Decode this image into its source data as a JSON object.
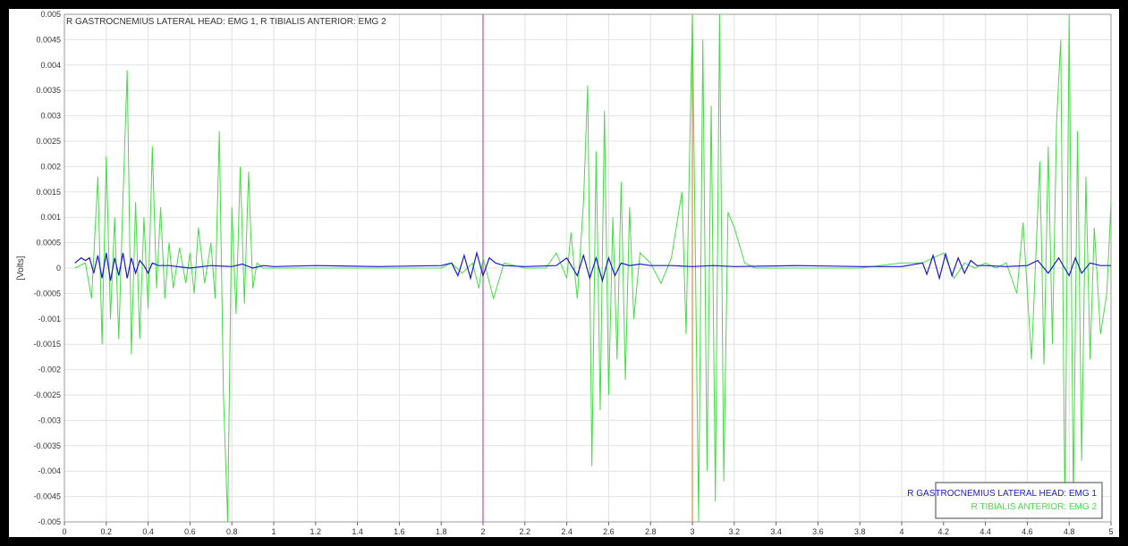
{
  "chart_data": {
    "type": "line",
    "title": "R GASTROCNEMIUS LATERAL HEAD: EMG 1, R TIBIALIS ANTERIOR: EMG 2",
    "xlabel": "",
    "ylabel": "[Volts]",
    "xlim": [
      0,
      5
    ],
    "ylim": [
      -0.005,
      0.005
    ],
    "x_ticks": [
      "0",
      "0.2",
      "0.4",
      "0.6",
      "0.8",
      "1",
      "1.2",
      "1.4",
      "1.6",
      "1.8",
      "2",
      "2.2",
      "2.4",
      "2.6",
      "2.8",
      "3",
      "3.2",
      "3.4",
      "3.6",
      "3.8",
      "4",
      "4.2",
      "4.4",
      "4.6",
      "4.8",
      "5"
    ],
    "y_ticks": [
      "0.005",
      "0.0045",
      "0.004",
      "0.0035",
      "0.003",
      "0.0025",
      "0.002",
      "0.0015",
      "0.001",
      "0.0005",
      "0",
      "-0.0005",
      "-0.001",
      "-0.0015",
      "-0.002",
      "-0.0025",
      "-0.003",
      "-0.0035",
      "-0.004",
      "-0.0045",
      "-0.005"
    ],
    "grid": true,
    "legend_position": "bottom-right",
    "markers": [
      {
        "x": 2.0,
        "color": "#cc44cc"
      },
      {
        "x": 3.0,
        "color": "#e08a3c"
      }
    ],
    "series": [
      {
        "name": "R GASTROCNEMIUS LATERAL HEAD: EMG 1",
        "color": "#1a1acc",
        "x": [
          0.05,
          0.08,
          0.1,
          0.12,
          0.14,
          0.16,
          0.18,
          0.2,
          0.22,
          0.24,
          0.26,
          0.28,
          0.3,
          0.32,
          0.34,
          0.36,
          0.38,
          0.4,
          0.42,
          0.45,
          0.5,
          0.6,
          0.7,
          0.8,
          0.85,
          0.9,
          0.95,
          1.0,
          1.2,
          1.5,
          1.8,
          1.85,
          1.88,
          1.91,
          1.94,
          1.97,
          2.0,
          2.03,
          2.06,
          2.1,
          2.2,
          2.35,
          2.4,
          2.45,
          2.48,
          2.51,
          2.54,
          2.57,
          2.6,
          2.63,
          2.66,
          2.7,
          2.75,
          2.8,
          2.9,
          3.0,
          3.1,
          3.2,
          3.5,
          3.8,
          4.0,
          4.1,
          4.12,
          4.15,
          4.18,
          4.21,
          4.24,
          4.27,
          4.3,
          4.33,
          4.36,
          4.4,
          4.5,
          4.6,
          4.65,
          4.7,
          4.75,
          4.8,
          4.83,
          4.86,
          4.9,
          4.95,
          5.0
        ],
        "y": [
          0.0001,
          0.0002,
          0.00015,
          0.0002,
          -0.0001,
          0.00025,
          -0.0002,
          0.0003,
          -0.00025,
          0.0002,
          -0.00015,
          0.0003,
          -0.0002,
          0.0002,
          -0.0001,
          0.00015,
          5e-05,
          -0.0001,
          0.0001,
          5e-05,
          5e-05,
          0.0,
          5e-05,
          3e-05,
          8e-05,
          0.0,
          5e-05,
          3e-05,
          5e-05,
          3e-05,
          5e-05,
          0.0001,
          -0.00015,
          0.00025,
          -0.0002,
          0.0003,
          -0.00015,
          0.0002,
          0.0001,
          5e-05,
          3e-05,
          5e-05,
          0.0002,
          -0.00015,
          0.00025,
          -0.0002,
          0.0002,
          -0.00025,
          0.0002,
          -0.00015,
          0.0001,
          5e-05,
          8e-05,
          5e-05,
          5e-05,
          3e-05,
          5e-05,
          3e-05,
          5e-05,
          3e-05,
          3e-05,
          0.0001,
          -0.00012,
          0.00025,
          -0.0002,
          0.00028,
          -0.00015,
          0.0002,
          -0.0001,
          0.00015,
          5e-05,
          5e-05,
          3e-05,
          5e-05,
          0.00015,
          -0.0001,
          0.0002,
          -0.00015,
          0.0002,
          -0.0001,
          0.0001,
          5e-05,
          5e-05
        ]
      },
      {
        "name": "R TIBIALIS ANTERIOR: EMG 2",
        "color": "#44dd44",
        "x": [
          0.05,
          0.1,
          0.13,
          0.16,
          0.18,
          0.2,
          0.22,
          0.24,
          0.26,
          0.28,
          0.3,
          0.32,
          0.34,
          0.36,
          0.38,
          0.4,
          0.42,
          0.44,
          0.46,
          0.48,
          0.5,
          0.52,
          0.55,
          0.58,
          0.6,
          0.62,
          0.64,
          0.67,
          0.7,
          0.72,
          0.74,
          0.76,
          0.78,
          0.8,
          0.82,
          0.84,
          0.86,
          0.88,
          0.9,
          0.92,
          0.95,
          1.0,
          1.2,
          1.5,
          1.8,
          1.85,
          1.9,
          1.95,
          1.98,
          2.0,
          2.05,
          2.1,
          2.2,
          2.3,
          2.35,
          2.4,
          2.42,
          2.45,
          2.48,
          2.5,
          2.52,
          2.54,
          2.56,
          2.58,
          2.6,
          2.62,
          2.64,
          2.66,
          2.68,
          2.7,
          2.72,
          2.75,
          2.8,
          2.85,
          2.9,
          2.95,
          2.97,
          3.0,
          3.03,
          3.05,
          3.07,
          3.09,
          3.11,
          3.13,
          3.15,
          3.17,
          3.2,
          3.25,
          3.3,
          3.5,
          3.8,
          4.0,
          4.1,
          4.2,
          4.25,
          4.3,
          4.35,
          4.4,
          4.45,
          4.5,
          4.55,
          4.58,
          4.62,
          4.66,
          4.68,
          4.7,
          4.72,
          4.74,
          4.76,
          4.78,
          4.8,
          4.82,
          4.84,
          4.86,
          4.88,
          4.9,
          4.92,
          4.95,
          4.98,
          5.0
        ],
        "y": [
          0.0,
          0.0001,
          -0.0006,
          0.0018,
          -0.0015,
          0.0022,
          -0.001,
          0.001,
          -0.0014,
          0.0014,
          0.0039,
          -0.0017,
          0.0013,
          -0.0014,
          0.001,
          -0.0008,
          0.0024,
          -0.0004,
          0.0012,
          -0.0006,
          0.0005,
          -0.0004,
          0.0004,
          -0.0003,
          0.0003,
          -0.0005,
          0.0008,
          -0.0003,
          0.0005,
          -0.0006,
          0.0027,
          -0.0025,
          -0.005,
          0.0012,
          -0.0009,
          0.002,
          -0.0007,
          0.0019,
          -0.0004,
          0.0001,
          0.0,
          0.0,
          0.0,
          0.0,
          0.0,
          0.0001,
          -0.0001,
          0.0001,
          -0.0004,
          0.0002,
          -0.0006,
          0.0001,
          0.0,
          0.0,
          0.0003,
          -0.0002,
          0.0007,
          -0.0006,
          0.0013,
          0.0036,
          -0.0039,
          0.0023,
          -0.0028,
          0.0031,
          -0.0025,
          0.001,
          -0.0018,
          0.0017,
          -0.0022,
          0.0012,
          -0.001,
          0.0003,
          0.0001,
          -0.0003,
          0.0002,
          0.0015,
          -0.0013,
          0.005,
          -0.005,
          0.0045,
          -0.004,
          0.0032,
          -0.0046,
          0.005,
          -0.0042,
          0.0011,
          0.0008,
          0.0001,
          0.0,
          0.0,
          0.0,
          0.0001,
          0.0001,
          0.0003,
          -0.0002,
          0.0001,
          0.0,
          0.0001,
          0.0,
          0.0001,
          -0.0005,
          0.0009,
          -0.0018,
          0.0021,
          -0.0019,
          0.0024,
          -0.0015,
          0.0029,
          0.0045,
          -0.0049,
          0.005,
          -0.0046,
          0.0027,
          -0.0038,
          0.0018,
          -0.0018,
          0.0008,
          -0.0013,
          -0.0005,
          0.0013
        ]
      }
    ]
  }
}
